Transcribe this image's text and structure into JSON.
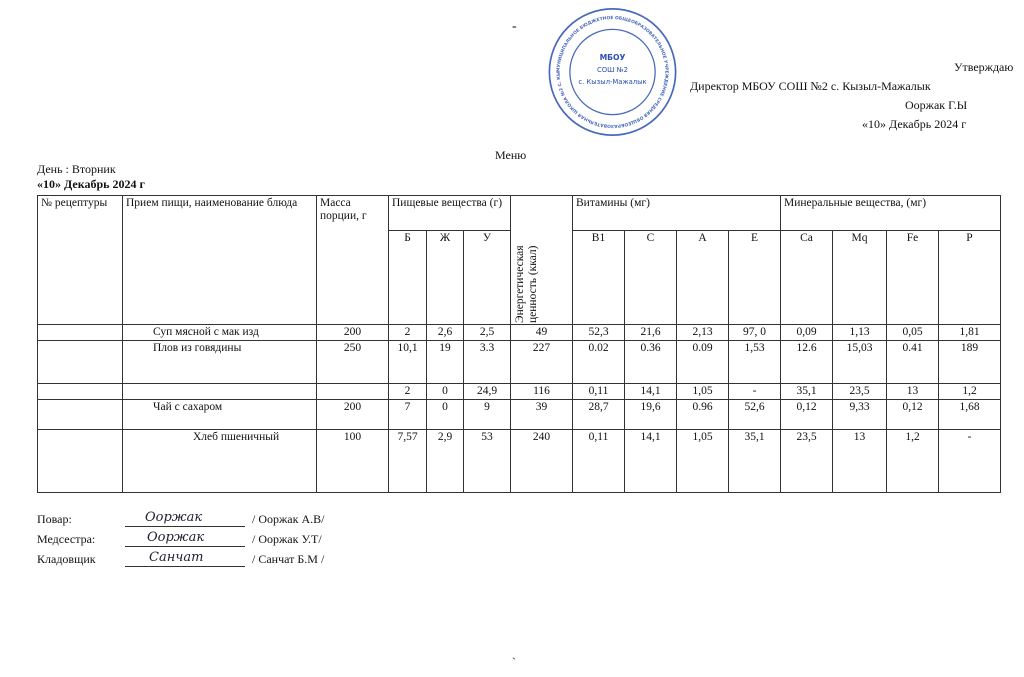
{
  "approval": {
    "line1": "Утверждаю",
    "line2": "Директор МБОУ СОШ №2 с. Кызыл-Мажалык",
    "line3": "Ооржак Г.Ы",
    "line4": "«10» Декабрь 2024 г"
  },
  "stamp": {
    "center1": "МБОУ",
    "center2": "СОШ №2",
    "center3": "с. Кызыл-Мажалык",
    "ring": "МУНИЦИПАЛЬНОЕ БЮДЖЕТНОЕ ОБЩЕОБРАЗОВАТЕЛЬНОЕ УЧРЕЖДЕНИЕ СРЕДНЯЯ ОБЩЕОБРАЗОВАТЕЛЬНАЯ ШКОЛА №2 С. КЫЗЫЛ-МАЖАЛЫК",
    "color": "#2a4fb0"
  },
  "title": "Меню",
  "day": "День : Вторник",
  "date": "«10» Декабрь 2024 г",
  "headers": {
    "recipe": "№ рецептуры",
    "dish": "Прием пищи, наименование блюда",
    "mass": "Масса порции, г",
    "nutrients": "Пищевые вещества (г)",
    "b": "Б",
    "zh": "Ж",
    "u": "У",
    "energy": "Энергетическая ценность (ккал)",
    "vitamins": "Витамины (мг)",
    "b1": "В1",
    "c": "С",
    "a": "А",
    "e": "Е",
    "minerals": "Минеральные вещества, (мг)",
    "ca": "Ca",
    "mq": "Mq",
    "fe": "Fe",
    "p": "P"
  },
  "rows": [
    {
      "recipe": "",
      "dish": "Суп мясной с мак изд",
      "mass": "200",
      "b": "2",
      "zh": "2,6",
      "u": "2,5",
      "energy": "49",
      "b1": "52,3",
      "c": "21,6",
      "a": "2,13",
      "e": "97, 0",
      "ca": "0,09",
      "mq": "1,13",
      "fe": "0,05",
      "p": "1,81"
    },
    {
      "recipe": "",
      "dish": "Плов из говядины",
      "mass": "250",
      "b": "10,1",
      "zh": "19",
      "u": "3.3",
      "energy": "227",
      "b1": "0.02",
      "c": "0.36",
      "a": "0.09",
      "e": "1,53",
      "ca": "12.6",
      "mq": "15,03",
      "fe": "0.41",
      "p": "189"
    },
    {
      "recipe": "",
      "dish": "",
      "mass": "",
      "b": "2",
      "zh": "0",
      "u": "24,9",
      "energy": "116",
      "b1": "0,11",
      "c": "14,1",
      "a": "1,05",
      "e": "-",
      "ca": "35,1",
      "mq": "23,5",
      "fe": "13",
      "p": "1,2"
    },
    {
      "recipe": "",
      "dish": "Чай с сахаром",
      "mass": "200",
      "b": "7",
      "zh": "0",
      "u": "9",
      "energy": "39",
      "b1": "28,7",
      "c": "19,6",
      "a": "0.96",
      "e": "52,6",
      "ca": "0,12",
      "mq": "9,33",
      "fe": "0,12",
      "p": "1,68"
    },
    {
      "recipe": "",
      "dish": "Хлеб пшеничный",
      "mass": "100",
      "b": "7,57",
      "zh": "2,9",
      "u": "53",
      "energy": "240",
      "b1": "0,11",
      "c": "14,1",
      "a": "1,05",
      "e": "35,1",
      "ca": "23,5",
      "mq": "13",
      "fe": "1,2",
      "p": "-"
    }
  ],
  "signatures": [
    {
      "role": "Повар:",
      "name": "/ Ооржак А.В/",
      "signature": "Ооржак"
    },
    {
      "role": "Медсестра:",
      "name": "/ Ооржак У.Т/",
      "signature": "Ооржак"
    },
    {
      "role": "Кладовщик",
      "name": "/ Санчат Б.М /",
      "signature": "Санчат"
    }
  ]
}
